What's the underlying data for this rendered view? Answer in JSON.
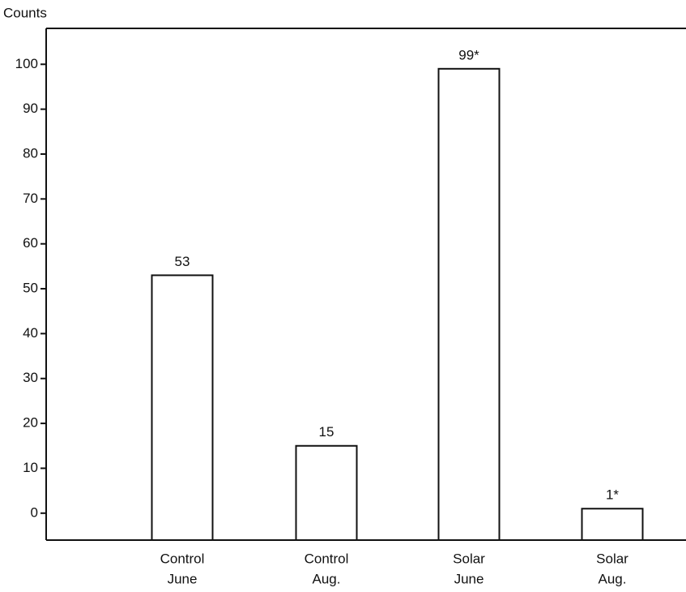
{
  "chart_data": {
    "type": "bar",
    "y_label": "Counts",
    "categories": [
      [
        "Control",
        "June"
      ],
      [
        "Control",
        "Aug."
      ],
      [
        "Solar",
        "June"
      ],
      [
        "Solar",
        "Aug."
      ]
    ],
    "values": [
      53,
      15,
      99,
      1
    ],
    "value_labels": [
      "53",
      "15",
      "99*",
      "1*"
    ],
    "color": "#ffffff",
    "ylim": [
      -6,
      108
    ],
    "yticks": [
      0,
      10,
      20,
      30,
      40,
      50,
      60,
      70,
      80,
      90,
      100
    ],
    "grid": false
  }
}
